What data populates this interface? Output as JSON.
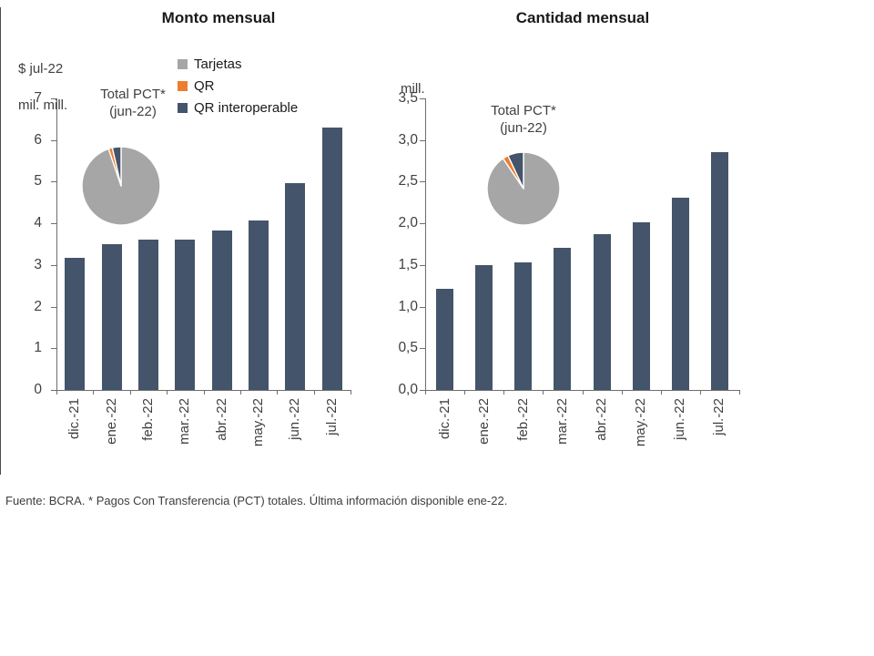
{
  "footer": {
    "text": "Fuente: BCRA. * Pagos Con Transferencia (PCT) totales. Última información disponible ene-22."
  },
  "legend": {
    "items": [
      {
        "label": "Tarjetas",
        "color": "#A6A6A6"
      },
      {
        "label": "QR",
        "color": "#ED7D31"
      },
      {
        "label": "QR interoperable",
        "color": "#44546A"
      }
    ]
  },
  "chart_data": [
    {
      "type": "bar",
      "title": "Monto mensual",
      "ylabel_lines": [
        "$ jul-22",
        "mil. mill."
      ],
      "categories": [
        "dic.-21",
        "ene.-22",
        "feb.-22",
        "mar.-22",
        "abr.-22",
        "may.-22",
        "jun.-22",
        "jul.-22"
      ],
      "values": [
        3.17,
        3.5,
        3.62,
        3.6,
        3.82,
        4.06,
        4.97,
        6.3
      ],
      "bar_color": "#44546A",
      "ylim": [
        0,
        7
      ],
      "ytick_values": [
        0,
        1,
        2,
        3,
        4,
        5,
        6,
        7
      ],
      "ytick_labels": [
        "0",
        "1",
        "2",
        "3",
        "4",
        "5",
        "6",
        "7"
      ],
      "grid": "off",
      "inset_pie": {
        "type": "pie",
        "title_lines": [
          "Total PCT*",
          "(jun-22)"
        ],
        "slices": [
          {
            "label": "Tarjetas",
            "pct": 94.8,
            "color": "#A6A6A6"
          },
          {
            "label": "QR",
            "pct": 1.6,
            "color": "#ED7D31"
          },
          {
            "label": "QR interoperable",
            "pct": 3.6,
            "color": "#44546A"
          }
        ]
      }
    },
    {
      "type": "bar",
      "title": "Cantidad mensual",
      "ylabel_lines": [
        "mill."
      ],
      "categories": [
        "dic.-21",
        "ene.-22",
        "feb.-22",
        "mar.-22",
        "abr.-22",
        "may.-22",
        "jun.-22",
        "jul.-22"
      ],
      "values": [
        1.21,
        1.5,
        1.53,
        1.71,
        1.87,
        2.01,
        2.31,
        2.86
      ],
      "bar_color": "#44546A",
      "ylim": [
        0,
        3.5
      ],
      "ytick_values": [
        0,
        0.5,
        1,
        1.5,
        2,
        2.5,
        3,
        3.5
      ],
      "ytick_labels": [
        "0,0",
        "0,5",
        "1,0",
        "1,5",
        "2,0",
        "2,5",
        "3,0",
        "3,5"
      ],
      "grid": "off",
      "inset_pie": {
        "type": "pie",
        "title_lines": [
          "Total PCT*",
          "(jun-22)"
        ],
        "slices": [
          {
            "label": "Tarjetas",
            "pct": 90.5,
            "color": "#A6A6A6"
          },
          {
            "label": "QR",
            "pct": 2.5,
            "color": "#ED7D31"
          },
          {
            "label": "QR interoperable",
            "pct": 7.0,
            "color": "#44546A"
          }
        ]
      }
    }
  ]
}
